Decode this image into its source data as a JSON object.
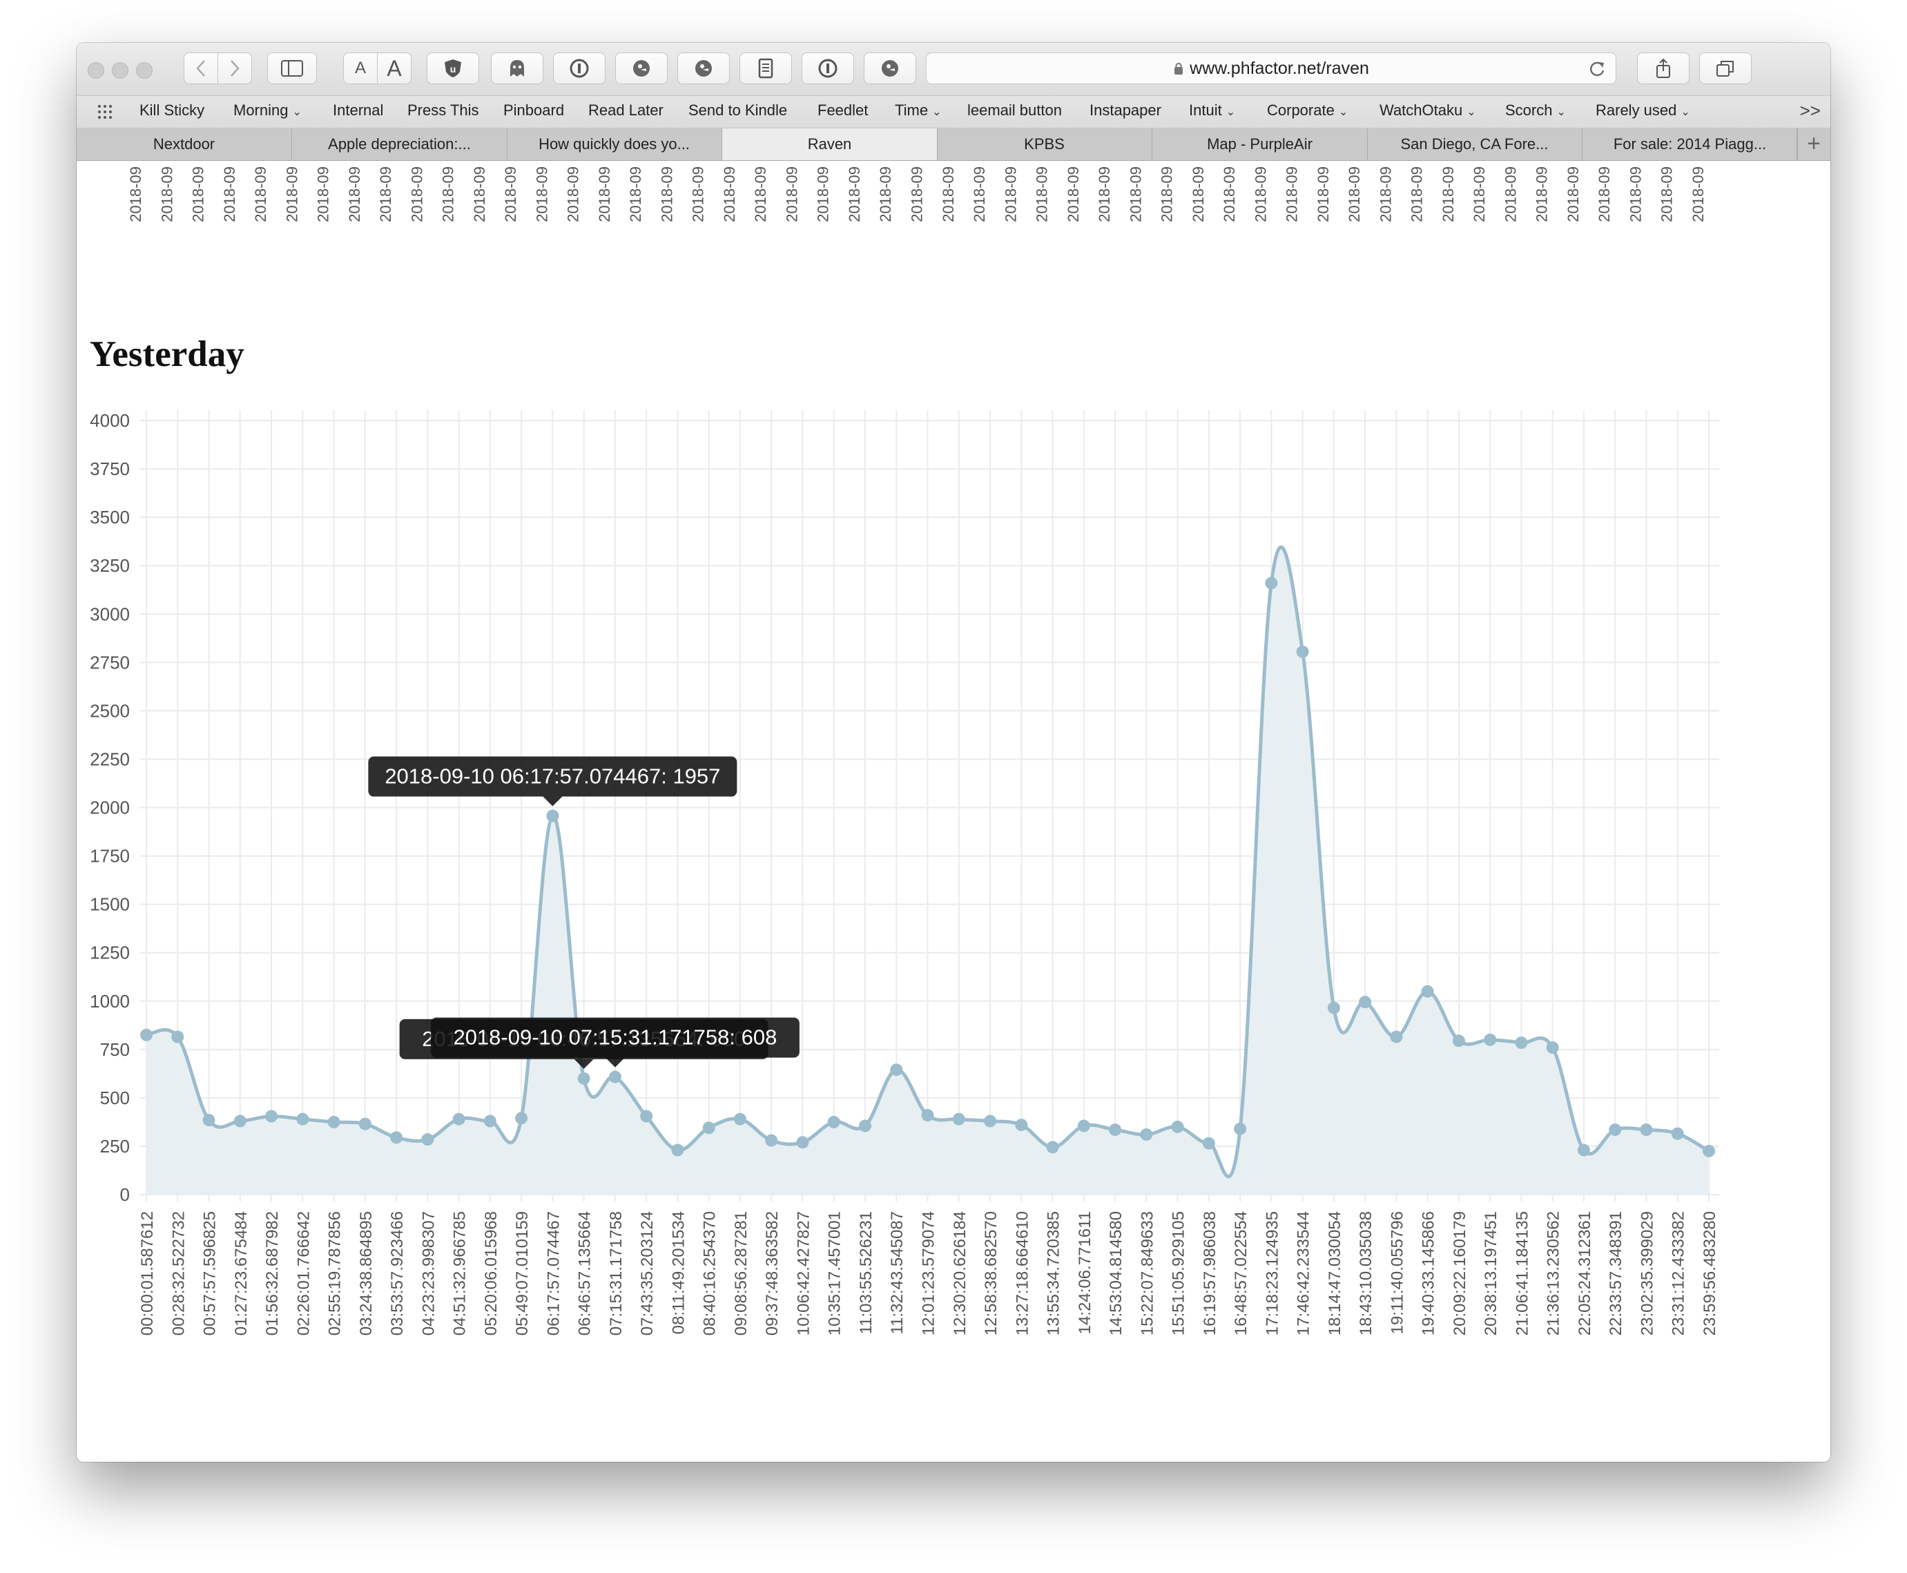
{
  "browser": {
    "url": "www.phfactor.net/raven",
    "toolbar_text_smaller": "A",
    "toolbar_text_larger": "A",
    "bookmarks": [
      {
        "label": "Kill Sticky",
        "menu": false
      },
      {
        "label": "Morning",
        "menu": true
      },
      {
        "label": "Internal",
        "menu": false
      },
      {
        "label": "Press This",
        "menu": false
      },
      {
        "label": "Pinboard",
        "menu": false
      },
      {
        "label": "Read Later",
        "menu": false
      },
      {
        "label": "Send to Kindle",
        "menu": false
      },
      {
        "label": "Feedlet",
        "menu": false
      },
      {
        "label": "Time",
        "menu": true
      },
      {
        "label": "leemail button",
        "menu": false
      },
      {
        "label": "Instapaper",
        "menu": false
      },
      {
        "label": "Intuit",
        "menu": true
      },
      {
        "label": "Corporate",
        "menu": true
      },
      {
        "label": "WatchOtaku",
        "menu": true
      },
      {
        "label": "Scorch",
        "menu": true
      },
      {
        "label": "Rarely used",
        "menu": true
      }
    ],
    "tabs": [
      {
        "label": "Nextdoor",
        "active": false
      },
      {
        "label": "Apple depreciation:...",
        "active": false
      },
      {
        "label": "How quickly does yo...",
        "active": false
      },
      {
        "label": "Raven",
        "active": true
      },
      {
        "label": "KPBS",
        "active": false
      },
      {
        "label": "Map - PurpleAir",
        "active": false
      },
      {
        "label": "San Diego, CA Fore...",
        "active": false
      },
      {
        "label": "For sale: 2014 Piagg...",
        "active": false
      }
    ]
  },
  "page": {
    "heading": "Yesterday",
    "previous_chart_tick_label": "2018-09"
  },
  "chart_data": {
    "type": "area",
    "title": "",
    "date_prefix": "2018-09-10",
    "ylim": [
      0,
      4000
    ],
    "yticks": [
      0,
      250,
      500,
      750,
      1000,
      1250,
      1500,
      1750,
      2000,
      2250,
      2500,
      2750,
      3000,
      3250,
      3500,
      3750,
      4000
    ],
    "grid": true,
    "line_color": "#9bbccd",
    "fill_color": "#e8eff3",
    "x": [
      "00:00:01.587612",
      "00:28:32.522732",
      "00:57:57.596825",
      "01:27:23.675484",
      "01:56:32.687982",
      "02:26:01.766642",
      "02:55:19.787856",
      "03:24:38.864895",
      "03:53:57.923466",
      "04:23:23.998307",
      "04:51:32.966785",
      "05:20:06.015968",
      "05:49:07.010159",
      "06:17:57.074467",
      "06:46:57.135664",
      "07:15:31.171758",
      "07:43:35.203124",
      "08:11:49.201534",
      "08:40:16.254370",
      "09:08:56.287281",
      "09:37:48.363582",
      "10:06:42.427827",
      "10:35:17.457001",
      "11:03:55.526231",
      "11:32:43.545087",
      "12:01:23.579074",
      "12:30:20.626184",
      "12:58:38.682570",
      "13:27:18.664610",
      "13:55:34.720385",
      "14:24:06.771611",
      "14:53:04.814580",
      "15:22:07.849633",
      "15:51:05.929105",
      "16:19:57.986038",
      "16:48:57.022554",
      "17:18:23.124935",
      "17:46:42.233544",
      "18:14:47.030054",
      "18:43:10.035038",
      "19:11:40.055796",
      "19:40:33.145866",
      "20:09:22.160179",
      "20:38:13.197451",
      "21:06:41.184135",
      "21:36:13.230562",
      "22:05:24.312361",
      "22:33:57.348391",
      "23:02:35.399029",
      "23:31:12.433382",
      "23:59:56.483280"
    ],
    "y": [
      825,
      815,
      385,
      380,
      405,
      390,
      375,
      365,
      295,
      285,
      390,
      380,
      395,
      1957,
      600,
      608,
      405,
      230,
      345,
      390,
      280,
      270,
      375,
      355,
      645,
      410,
      390,
      380,
      360,
      245,
      355,
      335,
      310,
      350,
      265,
      340,
      3160,
      2805,
      965,
      995,
      815,
      1050,
      795,
      800,
      785,
      760,
      230,
      335,
      335,
      315,
      225
    ],
    "tooltips": [
      {
        "index": 13,
        "text": "2018-09-10 06:17:57.074467: 1957"
      },
      {
        "index": 14,
        "text": "2018-09-10 06:46:57.135664: 600"
      },
      {
        "index": 15,
        "text": "2018-09-10 07:15:31.171758: 608"
      }
    ]
  }
}
